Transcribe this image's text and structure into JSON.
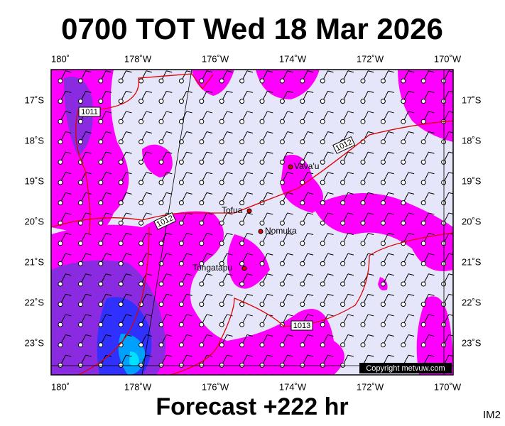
{
  "header": {
    "title": "0700 TOT Wed 18 Mar 2026"
  },
  "map": {
    "lon_labels": [
      "180˚",
      "178˚W",
      "176˚W",
      "174˚W",
      "172˚W",
      "170˚W"
    ],
    "lat_labels": [
      "17˚S",
      "18˚S",
      "19˚S",
      "20˚S",
      "21˚S",
      "22˚S",
      "23˚S"
    ],
    "isobar_labels": [
      "1011",
      "1012",
      "1012",
      "1013"
    ],
    "places": [
      "Vava'u",
      "Tofua",
      "Nomuka",
      "Tongatapu"
    ],
    "copyright": "Copyright metvuw.com"
  },
  "footer": {
    "forecast": "Forecast +222 hr",
    "image_id": "IM2"
  }
}
